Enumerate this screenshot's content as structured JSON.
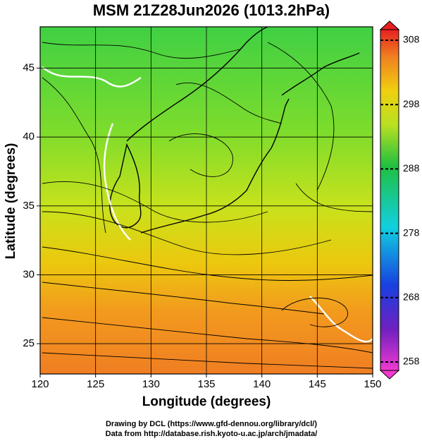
{
  "title": "MSM 21Z28Jun2026 (1013.2hPa)",
  "x_axis": {
    "label": "Longitude (degrees)",
    "lim": [
      120,
      150
    ],
    "ticks": [
      120,
      125,
      130,
      135,
      140,
      145,
      150
    ]
  },
  "y_axis": {
    "label": "Latitude  (degrees)",
    "lim": [
      22.8,
      48
    ],
    "ticks": [
      25,
      30,
      35,
      40,
      45
    ]
  },
  "colorbar": {
    "lim": [
      258,
      308
    ],
    "ticks": [
      258,
      268,
      278,
      288,
      298,
      308
    ]
  },
  "credits": [
    "Drawing by DCL (https://www.gfd-dennou.org/library/dcl/)",
    "Data from http://database.rish.kyoto-u.ac.jp/arch/jmadata/"
  ]
}
